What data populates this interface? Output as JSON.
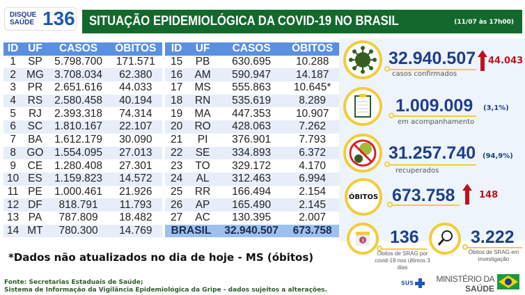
{
  "logo": {
    "line1": "DISQUE",
    "line2": "SAÚDE",
    "number": "136"
  },
  "header": {
    "title": "SITUAÇÃO EPIDEMIOLÓGICA DA COVID-19 NO BRASIL",
    "date": "(11/07 às 17h00)"
  },
  "table": {
    "columns": [
      "ID",
      "UF",
      "CASOS",
      "ÓBITOS"
    ],
    "left_rows": [
      [
        "1",
        "SP",
        "5.798.700",
        "171.571"
      ],
      [
        "2",
        "MG",
        "3.708.034",
        "62.380"
      ],
      [
        "3",
        "PR",
        "2.651.616",
        "44.033"
      ],
      [
        "4",
        "RS",
        "2.580.458",
        "40.194"
      ],
      [
        "5",
        "RJ",
        "2.393.318",
        "74.314"
      ],
      [
        "6",
        "SC",
        "1.810.167",
        "22.107"
      ],
      [
        "7",
        "BA",
        "1.612.179",
        "30.090"
      ],
      [
        "8",
        "GO",
        "1.554.095",
        "27.013"
      ],
      [
        "9",
        "CE",
        "1.280.408",
        "27.301"
      ],
      [
        "10",
        "ES",
        "1.159.823",
        "14.572"
      ],
      [
        "11",
        "PE",
        "1.000.461",
        "21.926"
      ],
      [
        "12",
        "DF",
        "818.791",
        "11.793"
      ],
      [
        "13",
        "PA",
        "787.809",
        "18.482"
      ],
      [
        "14",
        "MT",
        "780.300",
        "14.769"
      ]
    ],
    "right_rows": [
      [
        "15",
        "PB",
        "630.695",
        "10.288"
      ],
      [
        "16",
        "AM",
        "590.947",
        "14.187"
      ],
      [
        "17",
        "MS",
        "555.863",
        "10.645*"
      ],
      [
        "18",
        "RN",
        "535.619",
        "8.289"
      ],
      [
        "19",
        "MA",
        "447.353",
        "10.907"
      ],
      [
        "20",
        "RO",
        "428.063",
        "7.262"
      ],
      [
        "21",
        "PI",
        "376.901",
        "7.793"
      ],
      [
        "22",
        "SE",
        "334.893",
        "6.372"
      ],
      [
        "23",
        "TO",
        "329.172",
        "4.170"
      ],
      [
        "24",
        "AL",
        "312.463",
        "6.994"
      ],
      [
        "25",
        "RR",
        "166.494",
        "2.154"
      ],
      [
        "26",
        "AP",
        "165.490",
        "2.145"
      ],
      [
        "27",
        "AC",
        "130.395",
        "2.007"
      ]
    ],
    "total": {
      "label": "BRASIL",
      "casos": "32.940.507",
      "obitos": "673.758"
    }
  },
  "stats": {
    "confirmed": {
      "value": "32.940.507",
      "label": "casos confirmados",
      "delta": "44.043",
      "icon": "virus-icon"
    },
    "monitoring": {
      "value": "1.009.009",
      "label": "em acompanhamento",
      "pct": "(3,1%)",
      "icon": "clipboard-icon"
    },
    "recovered": {
      "value": "31.257.740",
      "label": "recuperados",
      "pct": "(94,9%)",
      "icon": "no-virus-icon"
    },
    "deaths": {
      "badge": "ÓBITOS",
      "value": "673.758",
      "delta": "148"
    },
    "srag_recent": {
      "value": "136",
      "label": "Óbitos de SRAG por covid-19 nos últimos 3 dias",
      "icon_text": "3"
    },
    "srag_investigation": {
      "value": "3.222",
      "label": "Óbitos de SRAG em investigação",
      "icon": "magnifier-icon"
    }
  },
  "note": "*Dados não atualizados no dia de hoje - MS (óbitos)",
  "source": {
    "line1": "Fonte: Secretarias Estaduais de Saúde;",
    "line2": "Sistema de Informação da Vigilância Epidemiológica da Gripe - dados sujeitos a alterações."
  },
  "footer": {
    "sus": "SUS",
    "ministry1": "MINISTÉRIO DA",
    "ministry2": "SAÚDE"
  },
  "colors": {
    "header_green": "#13692d",
    "table_header": "#5b8fe0",
    "accent_yellow": "#f2cc3c",
    "number_blue": "#1d3f8a",
    "delta_red": "#c0111d"
  }
}
